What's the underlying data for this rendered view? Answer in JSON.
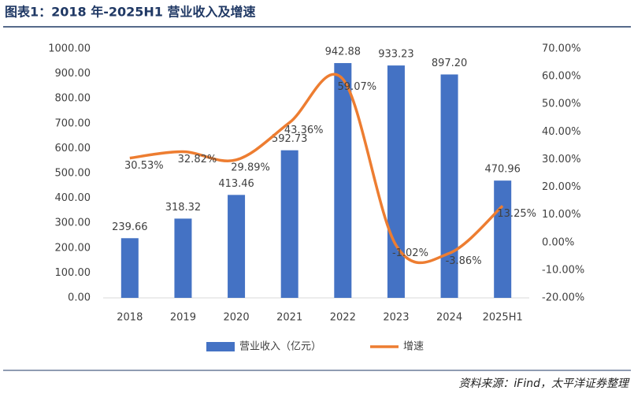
{
  "chart_data": {
    "type": "bar-line",
    "title": "图表1：2018 年-2025H1 营业收入及增速",
    "source": "资料来源：iFind，太平洋证券整理",
    "categories": [
      "2018",
      "2019",
      "2020",
      "2021",
      "2022",
      "2023",
      "2024",
      "2025H1"
    ],
    "series": [
      {
        "name": "营业收入（亿元）",
        "type": "bar",
        "color": "#4472c4",
        "values": [
          239.66,
          318.32,
          413.46,
          592.73,
          942.88,
          933.23,
          897.2,
          470.96
        ],
        "value_labels": [
          "239.66",
          "318.32",
          "413.46",
          "592.73",
          "942.88",
          "933.23",
          "897.20",
          "470.96"
        ]
      },
      {
        "name": "增速",
        "type": "line",
        "axis": "y2",
        "color": "#ed7d31",
        "smooth": true,
        "values": [
          30.53,
          32.82,
          29.89,
          43.36,
          59.07,
          -1.02,
          -3.86,
          13.25
        ],
        "value_labels": [
          "30.53%",
          "32.82%",
          "29.89%",
          "43.36%",
          "59.07%",
          "-1.02%",
          "-3.86%",
          "13.25%"
        ]
      }
    ],
    "ylim": [
      0,
      1000
    ],
    "yticks": [
      {
        "value": 0,
        "label": "0.00"
      },
      {
        "value": 100,
        "label": "100.00"
      },
      {
        "value": 200,
        "label": "200.00"
      },
      {
        "value": 300,
        "label": "300.00"
      },
      {
        "value": 400,
        "label": "400.00"
      },
      {
        "value": 500,
        "label": "500.00"
      },
      {
        "value": 600,
        "label": "600.00"
      },
      {
        "value": 700,
        "label": "700.00"
      },
      {
        "value": 800,
        "label": "800.00"
      },
      {
        "value": 900,
        "label": "900.00"
      },
      {
        "value": 1000,
        "label": "1000.00"
      }
    ],
    "y2lim": [
      -20,
      70
    ],
    "y2ticks": [
      {
        "value": -20,
        "label": "-20.00%"
      },
      {
        "value": -10,
        "label": "-10.00%"
      },
      {
        "value": 0,
        "label": "0.00%"
      },
      {
        "value": 10,
        "label": "10.00%"
      },
      {
        "value": 20,
        "label": "20.00%"
      },
      {
        "value": 30,
        "label": "30.00%"
      },
      {
        "value": 40,
        "label": "40.00%"
      },
      {
        "value": 50,
        "label": "50.00%"
      },
      {
        "value": 60,
        "label": "60.00%"
      },
      {
        "value": 70,
        "label": "70.00%"
      }
    ],
    "grid": false
  }
}
